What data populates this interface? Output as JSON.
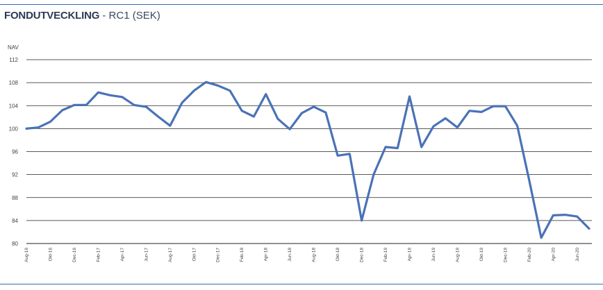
{
  "title": {
    "main": "FONDUTVECKLING",
    "separator": " - ",
    "sub": "RC1 (SEK)"
  },
  "colors": {
    "line": "#4a72b6",
    "rule": "#2f6db5",
    "grid": "#222222"
  },
  "chart_data": {
    "type": "line",
    "title": "FONDUTVECKLING - RC1 (SEK)",
    "xlabel": "",
    "ylabel": "NAV",
    "ylim": [
      80,
      112
    ],
    "yticks": [
      80,
      84,
      88,
      92,
      96,
      100,
      104,
      108,
      112
    ],
    "grid": "horizontal",
    "x_tick_labels": [
      {
        "index": 0,
        "label": "Aug-16"
      },
      {
        "index": 2,
        "label": "Okt-16"
      },
      {
        "index": 4,
        "label": "Dec-16"
      },
      {
        "index": 6,
        "label": "Feb-17"
      },
      {
        "index": 8,
        "label": "Apr-17"
      },
      {
        "index": 10,
        "label": "Jun-17"
      },
      {
        "index": 12,
        "label": "Aug-17"
      },
      {
        "index": 14,
        "label": "Okt-17"
      },
      {
        "index": 16,
        "label": "Dec-17"
      },
      {
        "index": 18,
        "label": "Feb-18"
      },
      {
        "index": 20,
        "label": "Apr-18"
      },
      {
        "index": 22,
        "label": "Jun-18"
      },
      {
        "index": 24,
        "label": "Aug-18"
      },
      {
        "index": 26,
        "label": "Okt-18"
      },
      {
        "index": 28,
        "label": "Dec-18"
      },
      {
        "index": 30,
        "label": "Feb-19"
      },
      {
        "index": 32,
        "label": "Apr-19"
      },
      {
        "index": 34,
        "label": "Jun-19"
      },
      {
        "index": 36,
        "label": "Aug-19"
      },
      {
        "index": 38,
        "label": "Okt-19"
      },
      {
        "index": 40,
        "label": "Dec-19"
      },
      {
        "index": 42,
        "label": "Feb-20"
      },
      {
        "index": 44,
        "label": "Apr-20"
      },
      {
        "index": 46,
        "label": "Jun-20"
      }
    ],
    "series": [
      {
        "values": [
          100.0,
          100.2,
          101.2,
          103.2,
          104.1,
          104.1,
          106.3,
          105.8,
          105.5,
          104.1,
          103.8,
          102.1,
          100.5,
          104.5,
          106.6,
          108.1,
          107.5,
          106.6,
          103.1,
          102.1,
          106.0,
          101.7,
          99.9,
          102.7,
          103.8,
          102.8,
          95.3,
          95.6,
          84.0,
          92.0,
          96.8,
          96.6,
          105.6,
          96.8,
          100.4,
          101.8,
          100.2,
          103.1,
          102.9,
          103.9,
          103.9,
          100.5,
          91.0,
          81.0,
          84.9,
          85.0,
          84.7,
          82.6
        ]
      }
    ]
  }
}
